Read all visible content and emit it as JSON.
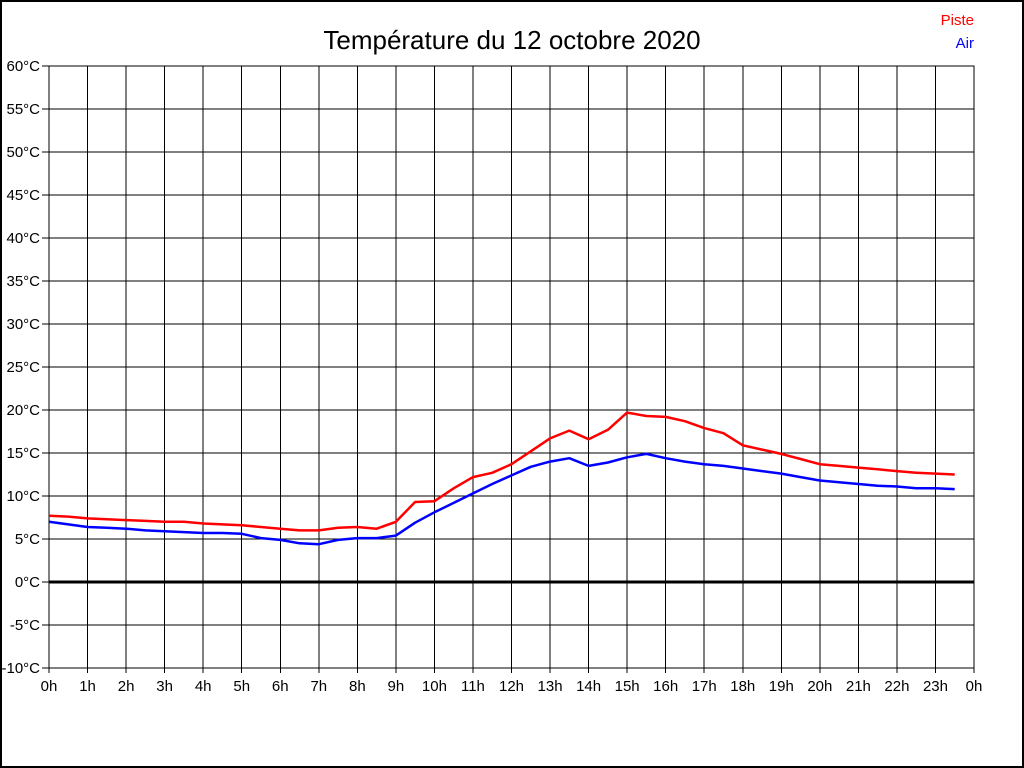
{
  "page": {
    "title": "Température du 12 octobre 2020"
  },
  "legend": [
    {
      "label": "Piste",
      "color": "#ff0000"
    },
    {
      "label": "Air",
      "color": "#0000ff"
    }
  ],
  "chart_data": {
    "type": "line",
    "title": "Température du 12 octobre 2020",
    "xlabel": "",
    "ylabel": "",
    "xlim": [
      0,
      24
    ],
    "ylim": [
      -10,
      60
    ],
    "grid": true,
    "zero_line_thick": true,
    "legend_position": "top-right",
    "x_unit": "hours",
    "xticks": [
      0,
      1,
      2,
      3,
      4,
      5,
      6,
      7,
      8,
      9,
      10,
      11,
      12,
      13,
      14,
      15,
      16,
      17,
      18,
      19,
      20,
      21,
      22,
      23,
      24
    ],
    "xtick_labels": [
      "0h",
      "1h",
      "2h",
      "3h",
      "4h",
      "5h",
      "6h",
      "7h",
      "8h",
      "9h",
      "10h",
      "11h",
      "12h",
      "13h",
      "14h",
      "15h",
      "16h",
      "17h",
      "18h",
      "19h",
      "20h",
      "21h",
      "22h",
      "23h",
      "0h"
    ],
    "yticks": [
      60,
      55,
      50,
      45,
      40,
      35,
      30,
      25,
      20,
      15,
      10,
      5,
      0,
      -5,
      -10
    ],
    "ytick_labels": [
      "60°C",
      "55°C",
      "50°C",
      "45°C",
      "40°C",
      "35°C",
      "30°C",
      "25°C",
      "20°C",
      "15°C",
      "10°C",
      "5°C",
      "0°C",
      "-5°C",
      "-10°C"
    ],
    "x": [
      0,
      0.5,
      1,
      1.5,
      2,
      2.5,
      3,
      3.5,
      4,
      4.5,
      5,
      5.5,
      6,
      6.5,
      7,
      7.5,
      8,
      8.5,
      9,
      9.5,
      10,
      10.5,
      11,
      11.5,
      12,
      12.5,
      13,
      13.5,
      14,
      14.5,
      15,
      15.5,
      16,
      16.5,
      17,
      17.5,
      18,
      18.5,
      19,
      19.5,
      20,
      20.5,
      21,
      21.5,
      22,
      22.5,
      23,
      23.5
    ],
    "series": [
      {
        "name": "Piste",
        "color": "#ff0000",
        "values": [
          7.7,
          7.6,
          7.4,
          7.3,
          7.2,
          7.1,
          7.0,
          7.0,
          6.8,
          6.7,
          6.6,
          6.4,
          6.2,
          6.0,
          6.0,
          6.3,
          6.4,
          6.2,
          7.0,
          9.3,
          9.4,
          10.9,
          12.2,
          12.7,
          13.7,
          15.2,
          16.7,
          17.6,
          16.6,
          17.7,
          19.7,
          19.3,
          19.2,
          18.7,
          17.9,
          17.3,
          15.9,
          15.4,
          14.9,
          14.3,
          13.7,
          13.5,
          13.3,
          13.1,
          12.9,
          12.7,
          12.6,
          12.5
        ]
      },
      {
        "name": "Air",
        "color": "#0000ff",
        "values": [
          7.0,
          6.7,
          6.4,
          6.3,
          6.2,
          6.0,
          5.9,
          5.8,
          5.7,
          5.7,
          5.6,
          5.1,
          4.9,
          4.5,
          4.4,
          4.9,
          5.1,
          5.1,
          5.4,
          6.9,
          8.1,
          9.2,
          10.3,
          11.4,
          12.4,
          13.4,
          14.0,
          14.4,
          13.5,
          13.9,
          14.5,
          14.9,
          14.4,
          14.0,
          13.7,
          13.5,
          13.2,
          12.9,
          12.6,
          12.2,
          11.8,
          11.6,
          11.4,
          11.2,
          11.1,
          10.9,
          10.9,
          10.8
        ]
      }
    ]
  }
}
